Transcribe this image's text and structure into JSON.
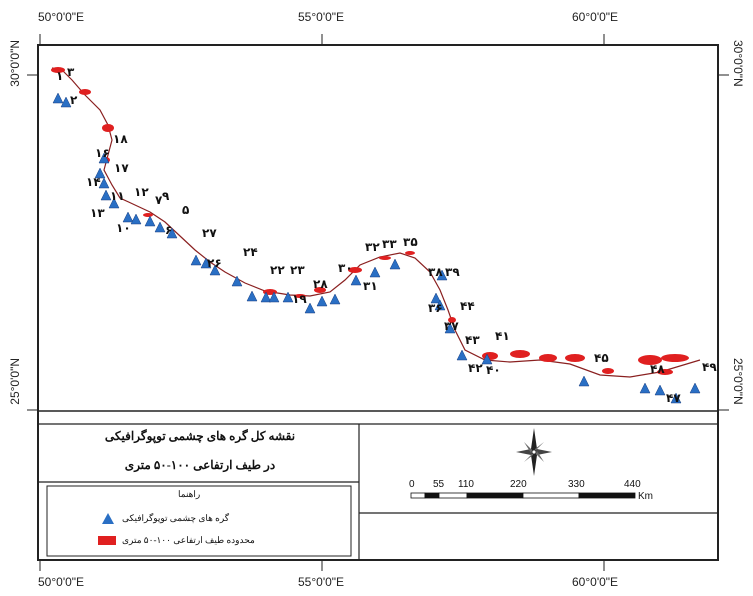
{
  "coords": {
    "top": [
      "50°0'0\"E",
      "55°0'0\"E",
      "60°0'0\"E"
    ],
    "bottom": [
      "50°0'0\"E",
      "55°0'0\"E",
      "60°0'0\"E"
    ],
    "left": [
      "30°0'0\"N",
      "25°0'0\"N"
    ],
    "right": [
      "30°0'0\"N",
      "25°0'0\"N"
    ]
  },
  "map": {
    "point_labels": [
      "۱",
      "۳",
      "۲",
      "۱۸",
      "۱۶",
      "۱۴",
      "۱۷",
      "۱۱",
      "۱۲",
      "۱۳",
      "۷",
      "۹",
      "۱۰",
      "۵",
      "۶",
      "۲۷",
      "۲۶",
      "۲۴",
      "۲۲",
      "۲۳",
      "۱۹",
      "۲۸",
      "۳۰",
      "۳۲",
      "۳۳",
      "۳۵",
      "۳۱",
      "۳۸",
      "۳۹",
      "۳۶",
      "۴۴",
      "۳۷",
      "۴۳",
      "۴۱",
      "۴۲",
      "۴۰",
      "۴۵",
      "۴۸",
      "۴۹",
      "۴۷"
    ],
    "colors": {
      "triangle": "#2a6fc4",
      "zone": "#e02020",
      "frame": "#222222"
    }
  },
  "panel": {
    "title_line1": "نقشه کل گره های چشمی توپوگرافیکی",
    "title_line2": "در طیف ارتفاعی ۱۰۰-۵۰ متری",
    "legend_heading": "راهنما",
    "legend_triangle": "گره های چشمی توپوگرافیکی",
    "legend_zone": "محدوده طیف ارتفاعی ۱۰۰-۵۰ متری",
    "scale_numbers": [
      "0",
      "55",
      "110",
      "220",
      "330",
      "440"
    ],
    "scale_unit": "Km",
    "north_arrow": "compass-rose"
  }
}
